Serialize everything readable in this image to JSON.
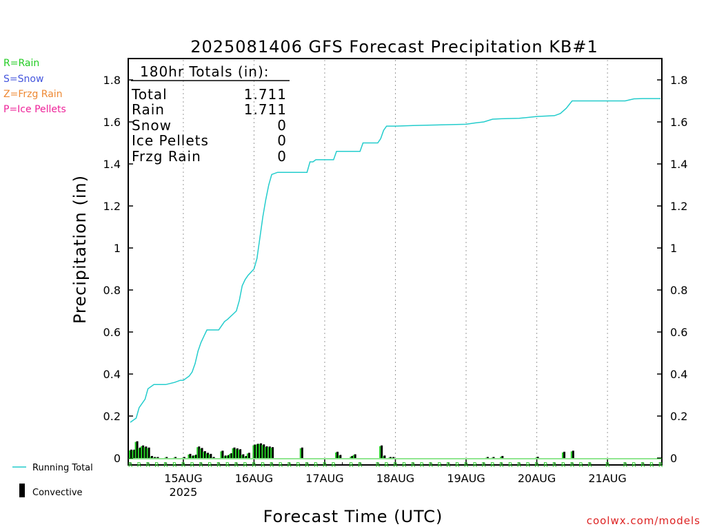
{
  "chart_data": {
    "type": "line",
    "title": "2025081406 GFS Forecast Precipitation KB#1",
    "xlabel": "Forecast Time (UTC)",
    "ylabel": "Precipitation (in)",
    "ylim": [
      0,
      1.88
    ],
    "xlim": [
      0,
      180
    ],
    "grid": "vertical dotted at day boundaries",
    "yticks": [
      "0",
      "0.2",
      "0.4",
      "0.6",
      "0.8",
      "1",
      "1.2",
      "1.4",
      "1.6",
      "1.8"
    ],
    "xticks": [
      {
        "label": "15AUG",
        "sub": "2025",
        "hour": 18
      },
      {
        "label": "16AUG",
        "sub": "",
        "hour": 42
      },
      {
        "label": "17AUG",
        "sub": "",
        "hour": 66
      },
      {
        "label": "18AUG",
        "sub": "",
        "hour": 90
      },
      {
        "label": "19AUG",
        "sub": "",
        "hour": 114
      },
      {
        "label": "20AUG",
        "sub": "",
        "hour": 138
      },
      {
        "label": "21AUG",
        "sub": "",
        "hour": 162
      }
    ],
    "totals_box": {
      "heading": "180hr Totals (in):",
      "rows": [
        {
          "label": "Total",
          "value": "1.711"
        },
        {
          "label": "Rain",
          "value": "1.711"
        },
        {
          "label": "Snow",
          "value": "0"
        },
        {
          "label": "Ice Pellets",
          "value": "0"
        },
        {
          "label": "Frzg Rain",
          "value": "0"
        }
      ]
    },
    "series": [
      {
        "name": "Running Total",
        "color": "#22cccc",
        "x": [
          0,
          2,
          3,
          5,
          6,
          8,
          9,
          12,
          15,
          17,
          18,
          20,
          21,
          22,
          23,
          24,
          25,
          26,
          27,
          30,
          31,
          32,
          33,
          36,
          37,
          38,
          39,
          40,
          42,
          43,
          44,
          45,
          46,
          47,
          48,
          50,
          52,
          60,
          61,
          62,
          63,
          66,
          69,
          70,
          71,
          72,
          78,
          79,
          81,
          84,
          85,
          86,
          87,
          90,
          96,
          102,
          108,
          114,
          117,
          120,
          123,
          126,
          132,
          138,
          144,
          146,
          148,
          150,
          156,
          162,
          168,
          171,
          174,
          180
        ],
        "y": [
          0.17,
          0.19,
          0.24,
          0.28,
          0.33,
          0.35,
          0.35,
          0.35,
          0.36,
          0.37,
          0.37,
          0.39,
          0.41,
          0.45,
          0.51,
          0.55,
          0.58,
          0.61,
          0.61,
          0.61,
          0.63,
          0.65,
          0.66,
          0.7,
          0.75,
          0.82,
          0.85,
          0.87,
          0.9,
          0.95,
          1.05,
          1.15,
          1.23,
          1.3,
          1.35,
          1.36,
          1.36,
          1.36,
          1.41,
          1.41,
          1.42,
          1.42,
          1.42,
          1.46,
          1.46,
          1.46,
          1.46,
          1.5,
          1.5,
          1.5,
          1.52,
          1.56,
          1.58,
          1.58,
          1.583,
          1.585,
          1.587,
          1.589,
          1.595,
          1.6,
          1.613,
          1.615,
          1.617,
          1.626,
          1.63,
          1.64,
          1.665,
          1.7,
          1.7,
          1.7,
          1.7,
          1.71,
          1.711,
          1.711
        ]
      },
      {
        "name": "Convective",
        "color": "#000000",
        "x": [
          0,
          1,
          2,
          3,
          4,
          5,
          6,
          7,
          8,
          9,
          12,
          15,
          18,
          20,
          21,
          22,
          23,
          24,
          25,
          26,
          27,
          28,
          31,
          32,
          33,
          34,
          35,
          36,
          37,
          38,
          39,
          40,
          42,
          43,
          44,
          45,
          46,
          47,
          48,
          58,
          70,
          71,
          75,
          76,
          85,
          86,
          88,
          89,
          121,
          123,
          126,
          138,
          147,
          150
        ],
        "y": [
          0.04,
          0.04,
          0.08,
          0.05,
          0.06,
          0.055,
          0.05,
          0.01,
          0.005,
          0.005,
          0.005,
          0.005,
          0.005,
          0.02,
          0.012,
          0.016,
          0.055,
          0.048,
          0.033,
          0.025,
          0.02,
          0.005,
          0.035,
          0.012,
          0.014,
          0.023,
          0.05,
          0.046,
          0.042,
          0.018,
          0.01,
          0.025,
          0.064,
          0.068,
          0.07,
          0.065,
          0.056,
          0.055,
          0.052,
          0.05,
          0.03,
          0.015,
          0.01,
          0.018,
          0.06,
          0.012,
          0.005,
          0.005,
          0.005,
          0.005,
          0.01,
          0.006,
          0.03,
          0.035
        ]
      }
    ],
    "legend_types": [
      {
        "text": "R=Rain",
        "color": "#22cc22"
      },
      {
        "text": "S=Snow",
        "color": "#4455dd"
      },
      {
        "text": "Z=Frzg Rain",
        "color": "#ee8833"
      },
      {
        "text": "P=Ice Pellets",
        "color": "#ee2299"
      }
    ],
    "legend_bottom": [
      {
        "text": "Running Total",
        "color": "#22cccc"
      },
      {
        "text": "Convective",
        "color": "#000000"
      }
    ],
    "ptype_marker": "R",
    "ptype_hours": [
      0,
      3,
      6,
      9,
      12,
      15,
      18,
      21,
      24,
      27,
      30,
      33,
      36,
      39,
      42,
      45,
      48,
      51,
      54,
      57,
      60,
      63,
      66,
      69,
      75,
      78,
      84,
      87,
      90,
      93,
      96,
      99,
      102,
      105,
      108,
      111,
      114,
      117,
      120,
      123,
      126,
      129,
      132,
      135,
      138,
      141,
      144,
      147,
      150,
      153,
      156,
      162,
      168,
      171,
      174,
      177,
      180
    ],
    "credit": "coolwx.com/models"
  }
}
